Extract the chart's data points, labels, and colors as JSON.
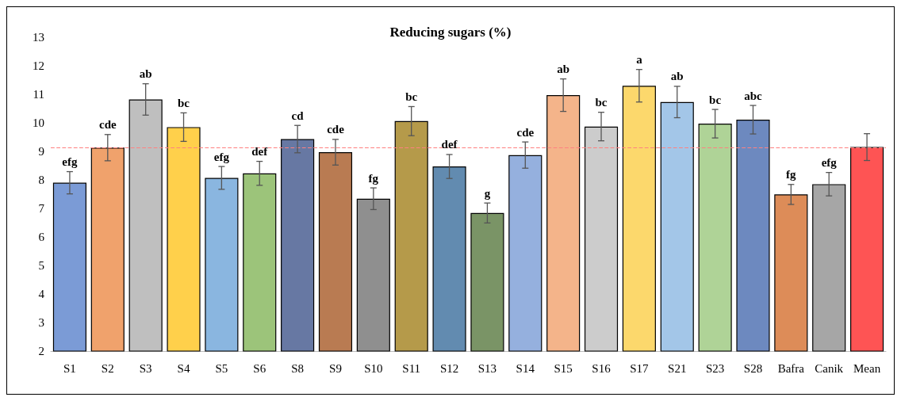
{
  "chart_data": {
    "type": "bar",
    "title": "Reducing sugars (%)",
    "categories": [
      "S1",
      "S2",
      "S3",
      "S4",
      "S5",
      "S6",
      "S8",
      "S9",
      "S10",
      "S11",
      "S12",
      "S13",
      "S14",
      "S15",
      "S16",
      "S17",
      "S21",
      "S23",
      "S28",
      "Bafra",
      "Canik",
      "Mean"
    ],
    "values": [
      7.9,
      9.13,
      10.82,
      9.85,
      8.07,
      8.23,
      9.43,
      8.97,
      7.34,
      10.06,
      8.47,
      6.84,
      8.87,
      10.97,
      9.87,
      11.3,
      10.73,
      9.97,
      10.11,
      7.49,
      7.85,
      9.15
    ],
    "errors": [
      0.39,
      0.46,
      0.55,
      0.5,
      0.4,
      0.42,
      0.48,
      0.45,
      0.38,
      0.51,
      0.42,
      0.35,
      0.46,
      0.57,
      0.5,
      0.57,
      0.55,
      0.5,
      0.5,
      0.35,
      0.41,
      0.47
    ],
    "value_labels": [
      "efg",
      "cde",
      "ab",
      "bc",
      "efg",
      "def",
      "cd",
      "cde",
      "fg",
      "bc",
      "def",
      "g",
      "cde",
      "ab",
      "bc",
      "a",
      "ab",
      "bc",
      "abc",
      "fg",
      "efg",
      null
    ],
    "colors": [
      "#7b9bd6",
      "#f0a26c",
      "#bfbfbf",
      "#ffd04b",
      "#8ab6e0",
      "#9cc47a",
      "#6778a3",
      "#b97b52",
      "#8f8f8f",
      "#b59a4a",
      "#628bb0",
      "#7a9466",
      "#95b0de",
      "#f4b48a",
      "#cccccc",
      "#fcd86c",
      "#a3c6e8",
      "#afd397",
      "#6d89bf",
      "#dd8c58",
      "#a6a6a6",
      "#fe5454"
    ],
    "ylim": [
      2,
      13
    ],
    "yticks": [
      2,
      3,
      4,
      5,
      6,
      7,
      8,
      9,
      10,
      11,
      12,
      13
    ],
    "ref_lines": [
      {
        "axis": "y",
        "value": 9.13,
        "label": null,
        "color": "#ff8080",
        "line_style": "dashed"
      }
    ],
    "grid": false
  }
}
